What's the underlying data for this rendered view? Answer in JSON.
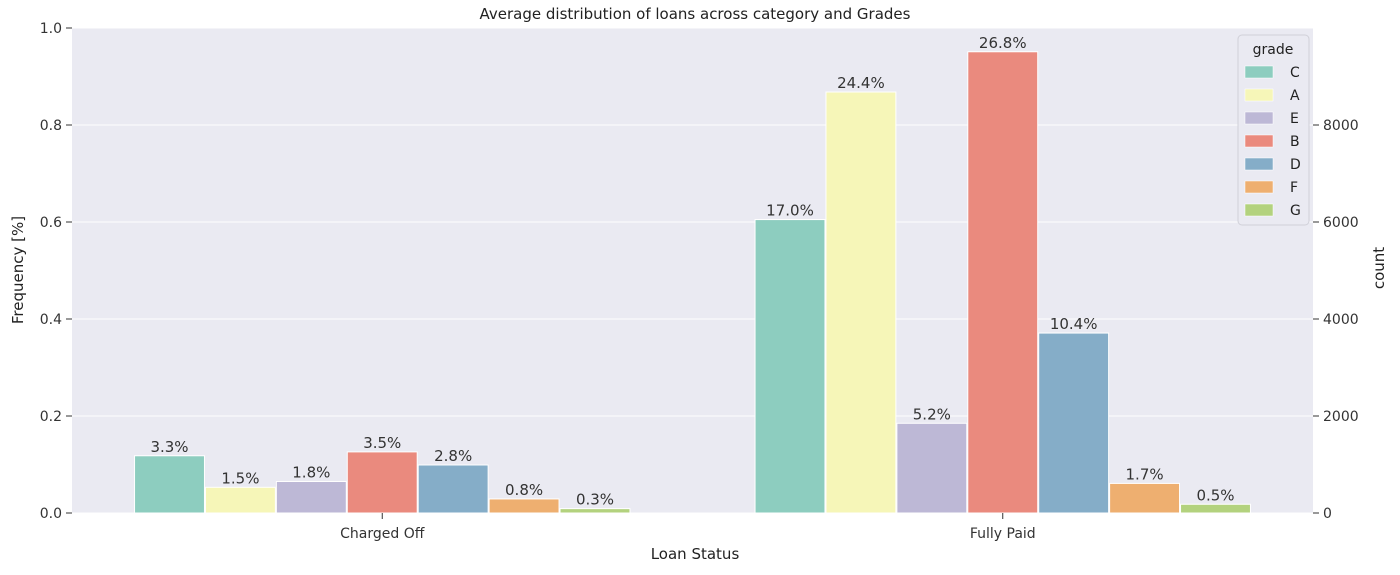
{
  "chart_data": {
    "type": "bar",
    "title": "Average distribution of loans across category and Grades",
    "xlabel": "Loan Status",
    "ylabel": "Frequency [%]",
    "ylabel_right": "count",
    "categories": [
      "Charged Off",
      "Fully Paid"
    ],
    "ylim": [
      0,
      1.0
    ],
    "yticks": [
      "0.0",
      "0.2",
      "0.4",
      "0.6",
      "0.8",
      "1.0"
    ],
    "ylim_right": [
      0,
      10000
    ],
    "yticks_right": [
      "0",
      "2000",
      "4000",
      "6000",
      "8000"
    ],
    "legend": {
      "title": "grade",
      "position": "top-right"
    },
    "grid": true,
    "series": [
      {
        "name": "C",
        "color": "#8dcdbf",
        "values": [
          0.118,
          0.605
        ],
        "labels": [
          "3.3%",
          "17.0%"
        ]
      },
      {
        "name": "A",
        "color": "#f6f6b8",
        "values": [
          0.053,
          0.868
        ],
        "labels": [
          "1.5%",
          "24.4%"
        ]
      },
      {
        "name": "E",
        "color": "#bdb8d6",
        "values": [
          0.065,
          0.185
        ],
        "labels": [
          "1.8%",
          "5.2%"
        ]
      },
      {
        "name": "B",
        "color": "#ea8a7e",
        "values": [
          0.126,
          0.951
        ],
        "labels": [
          "3.5%",
          "26.8%"
        ]
      },
      {
        "name": "D",
        "color": "#85adc8",
        "values": [
          0.099,
          0.371
        ],
        "labels": [
          "2.8%",
          "10.4%"
        ]
      },
      {
        "name": "F",
        "color": "#eeaf70",
        "values": [
          0.029,
          0.061
        ],
        "labels": [
          "0.8%",
          "1.7%"
        ]
      },
      {
        "name": "G",
        "color": "#b3d27e",
        "values": [
          0.009,
          0.018
        ],
        "labels": [
          "0.3%",
          "0.5%"
        ]
      }
    ]
  }
}
